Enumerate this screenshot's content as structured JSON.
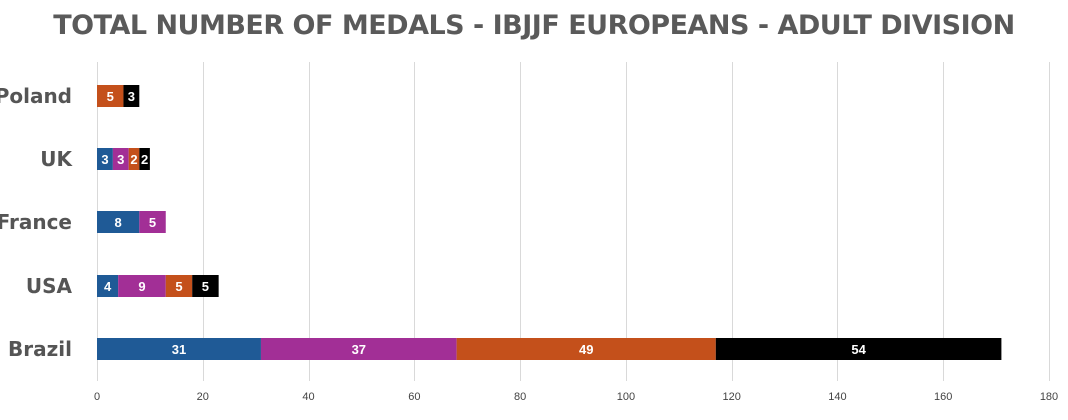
{
  "chart_data": {
    "type": "bar",
    "orientation": "horizontal",
    "stacked": true,
    "title": "TOTAL NUMBER OF MEDALS - IBJJF EUROPEANS - ADULT DIVISION",
    "xlabel": "",
    "ylabel": "",
    "categories": [
      "Poland",
      "UK",
      "France",
      "USA",
      "Brazil"
    ],
    "series": [
      {
        "color": "#1f5a96",
        "values": [
          0,
          3,
          8,
          4,
          31
        ]
      },
      {
        "color": "#a22f96",
        "values": [
          0,
          3,
          5,
          9,
          37
        ]
      },
      {
        "color": "#c4501b",
        "values": [
          5,
          2,
          0,
          5,
          49
        ]
      },
      {
        "color": "#000000",
        "values": [
          3,
          2,
          0,
          5,
          54
        ]
      }
    ],
    "xlim": [
      0,
      180
    ],
    "xticks": [
      0,
      20,
      40,
      60,
      80,
      100,
      120,
      140,
      160,
      180
    ],
    "grid": "vertical",
    "legend": "none",
    "data_labels": true
  }
}
